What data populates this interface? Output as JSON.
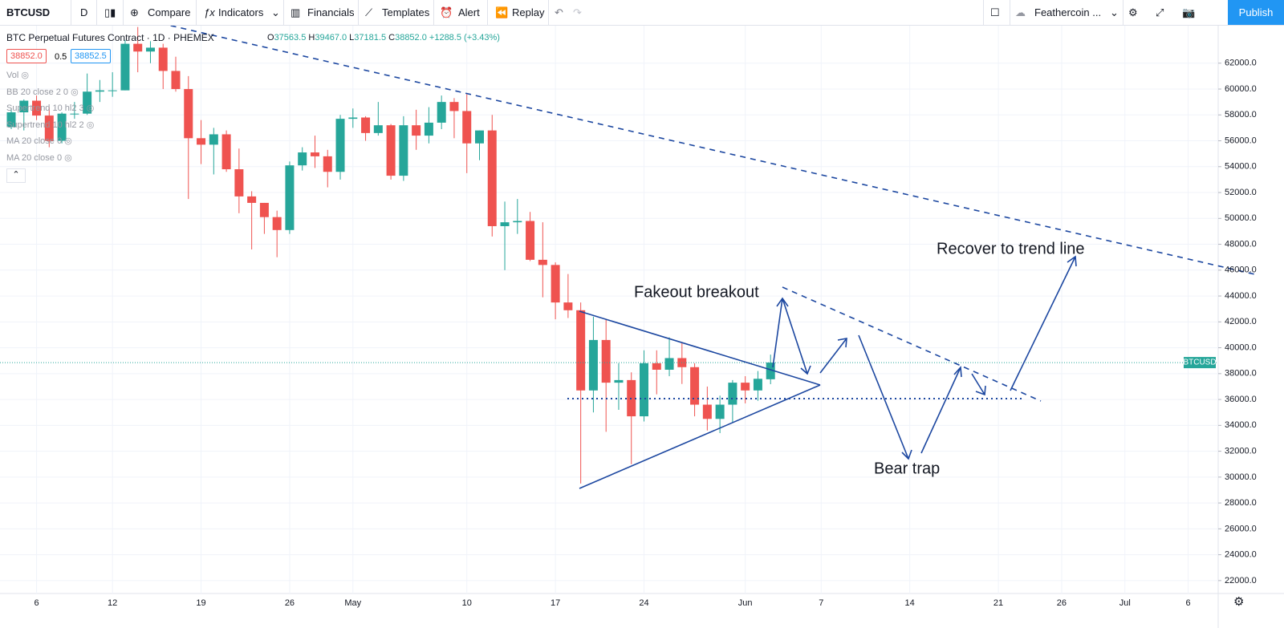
{
  "toolbar": {
    "symbol": "BTCUSD",
    "interval": "D",
    "items": [
      "Compare",
      "Indicators",
      "Financials",
      "Templates",
      "Alert",
      "Replay"
    ],
    "layout": "Feathercoin ...",
    "publish": "Publish"
  },
  "legend": {
    "title": "BTC Perpetual Futures Contract · 1D · PHEMEX",
    "ohlc": [
      {
        "label": "O",
        "value": "37563.5"
      },
      {
        "label": "H",
        "value": "39467.0"
      },
      {
        "label": "L",
        "value": "37181.5"
      },
      {
        "label": "C",
        "value": "38852.0"
      }
    ],
    "change": "+1288.5 (+3.43%)",
    "bid": "38852.0",
    "spread": "0.5",
    "ask": "38852.5",
    "indicators": [
      "Vol",
      "BB 20 close 2 0",
      "Supertrend 10 hl2 3",
      "Supertrend 10 hl2 2",
      "MA 20 close 0",
      "MA 20 close 0"
    ]
  },
  "chart_data": {
    "type": "candlestick",
    "categories": [
      null,
      null,
      "6",
      null,
      null,
      null,
      null,
      null,
      "12",
      null,
      null,
      null,
      null,
      null,
      null,
      "19",
      null,
      null,
      null,
      null,
      null,
      null,
      "26",
      null,
      null,
      null,
      null,
      "May",
      null,
      null,
      null,
      null,
      null,
      null,
      null,
      null,
      "10",
      null,
      null,
      null,
      null,
      null,
      null,
      "17",
      null,
      null,
      null,
      null,
      null,
      null,
      "24",
      null,
      null,
      null,
      null,
      null,
      null,
      null,
      "Jun",
      null,
      null,
      null,
      null,
      null,
      "7",
      null,
      null,
      null,
      null,
      null,
      null,
      "14",
      null,
      null,
      null,
      null,
      null,
      null,
      "21",
      null,
      null,
      null,
      null,
      "26",
      null,
      null,
      null,
      null,
      "Jul",
      null,
      null,
      null,
      null,
      "6",
      null,
      null
    ],
    "series": [
      {
        "name": "BTCUSD",
        "up_color": "#26a69a",
        "down_color": "#ef5350",
        "open": [
          57060,
          58200,
          59100,
          57950,
          56000,
          58100,
          58100,
          59800,
          59900,
          59900,
          63500,
          62900,
          63200,
          61400,
          60000,
          56200,
          55700,
          56500,
          53800,
          51700,
          51200,
          50100,
          49100,
          54100,
          55100,
          54800,
          53600,
          57700,
          57800,
          56600,
          57200,
          53300,
          57200,
          56400,
          57400,
          59000,
          58300,
          55800,
          56800,
          49400,
          49700,
          49800,
          46800,
          46400,
          43500,
          42900,
          36700,
          40600,
          37300,
          37500,
          34700,
          38800,
          38300,
          39200,
          38500,
          35600,
          34500,
          35600,
          37300,
          36700,
          37563.5,
          null,
          null,
          null,
          null,
          null,
          null,
          null,
          null,
          null,
          null,
          null,
          null,
          null,
          null,
          null,
          null,
          null,
          null,
          null,
          null,
          null,
          null,
          null,
          null,
          null,
          null,
          null,
          null,
          null,
          null,
          null,
          null,
          null,
          null,
          null
        ],
        "high": [
          58500,
          59200,
          59500,
          58600,
          58200,
          59000,
          61200,
          60700,
          61300,
          63800,
          64800,
          63700,
          63500,
          62500,
          61000,
          57600,
          57000,
          56800,
          55400,
          52100,
          51200,
          50600,
          54400,
          55500,
          56400,
          55300,
          58000,
          58500,
          57900,
          59000,
          57300,
          57900,
          58400,
          58600,
          59500,
          59300,
          59600,
          56800,
          58000,
          51300,
          51500,
          50500,
          49700,
          46600,
          45700,
          43500,
          42400,
          42200,
          38800,
          38100,
          39800,
          39800,
          40800,
          40400,
          38800,
          37000,
          36300,
          37500,
          37800,
          38200,
          39467,
          null,
          null,
          null,
          null,
          null,
          null,
          null,
          null,
          null,
          null,
          null,
          null,
          null,
          null,
          null,
          null,
          null,
          null,
          null,
          null,
          null,
          null,
          null,
          null,
          null,
          null,
          null,
          null,
          null,
          null,
          null,
          null,
          null,
          null,
          null
        ],
        "low": [
          56900,
          56800,
          57600,
          55500,
          55800,
          57700,
          58000,
          59000,
          59400,
          59900,
          61300,
          62000,
          60000,
          59800,
          51500,
          54200,
          53400,
          53600,
          50400,
          47600,
          48800,
          47000,
          48800,
          53700,
          53900,
          52400,
          53000,
          57000,
          56000,
          56400,
          53000,
          52900,
          55300,
          55800,
          56900,
          56200,
          53500,
          54500,
          48600,
          46000,
          48800,
          46700,
          43900,
          42200,
          42300,
          29500,
          35000,
          33500,
          35200,
          31000,
          34300,
          36400,
          37800,
          37200,
          34700,
          33600,
          33400,
          34200,
          35700,
          35900,
          37181.5,
          null,
          null,
          null,
          null,
          null,
          null,
          null,
          null,
          null,
          null,
          null,
          null,
          null,
          null,
          null,
          null,
          null,
          null,
          null,
          null,
          null,
          null,
          null,
          null,
          null,
          null,
          null,
          null,
          null,
          null,
          null,
          null,
          null,
          null,
          null
        ],
        "close": [
          58200,
          59100,
          57950,
          56000,
          58100,
          58100,
          59800,
          59900,
          59900,
          63500,
          62900,
          63200,
          61400,
          60000,
          56200,
          55700,
          56500,
          53800,
          51700,
          51200,
          50100,
          49100,
          54100,
          55100,
          54800,
          53600,
          57700,
          57800,
          56600,
          57200,
          53300,
          57200,
          56400,
          57400,
          59000,
          58300,
          55800,
          56800,
          49400,
          49700,
          49800,
          46800,
          46400,
          43500,
          42900,
          36700,
          40600,
          37300,
          37500,
          34700,
          38800,
          38300,
          39200,
          38500,
          35600,
          34500,
          35600,
          37300,
          36700,
          37600,
          38852,
          null,
          null,
          null,
          null,
          null,
          null,
          null,
          null,
          null,
          null,
          null,
          null,
          null,
          null,
          null,
          null,
          null,
          null,
          null,
          null,
          null,
          null,
          null,
          null,
          null,
          null,
          null,
          null,
          null,
          null,
          null,
          null,
          null,
          null,
          null
        ]
      }
    ],
    "ylim": [
      21000,
      64900
    ],
    "yticks": [
      {
        "value": 22000,
        "label": "22000.0"
      },
      {
        "value": 24000,
        "label": "24000.0"
      },
      {
        "value": 26000,
        "label": "26000.0"
      },
      {
        "value": 28000,
        "label": "28000.0"
      },
      {
        "value": 30000,
        "label": "30000.0"
      },
      {
        "value": 32000,
        "label": "32000.0"
      },
      {
        "value": 34000,
        "label": "34000.0"
      },
      {
        "value": 36000,
        "label": "36000.0"
      },
      {
        "value": 38000,
        "label": "38000.0"
      },
      {
        "value": 40000,
        "label": "40000.0"
      },
      {
        "value": 42000,
        "label": "42000.0"
      },
      {
        "value": 44000,
        "label": "44000.0"
      },
      {
        "value": 46000,
        "label": "46000.0"
      },
      {
        "value": 48000,
        "label": "48000.0"
      },
      {
        "value": 50000,
        "label": "50000.0"
      },
      {
        "value": 52000,
        "label": "52000.0"
      },
      {
        "value": 54000,
        "label": "54000.0"
      },
      {
        "value": 56000,
        "label": "56000.0"
      },
      {
        "value": 58000,
        "label": "58000.0"
      },
      {
        "value": 60000,
        "label": "60000.0"
      },
      {
        "value": 62000,
        "label": "62000.0"
      }
    ],
    "grid": true,
    "annotations": [
      "Fakeout breakout",
      "Recover to trend line",
      "Bear trap"
    ]
  }
}
